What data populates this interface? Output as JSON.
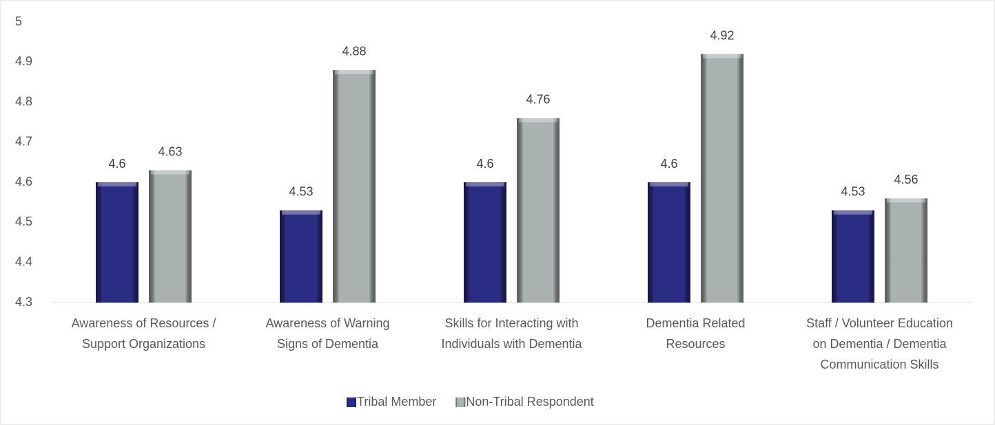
{
  "chart_data": {
    "type": "bar",
    "categories": [
      "Awareness of Resources /\nSupport Organizations",
      "Awareness of Warning\nSigns of Dementia",
      "Skills for Interacting with\nIndividuals with Dementia",
      "Dementia Related\nResources",
      "Staff / Volunteer Education\non Dementia / Dementia\nCommunication Skills"
    ],
    "series": [
      {
        "name": "Tribal Member",
        "color": "#2b2d84",
        "values": [
          4.6,
          4.53,
          4.6,
          4.6,
          4.53
        ]
      },
      {
        "name": "Non-Tribal Respondent",
        "color": "#a9b1b1",
        "values": [
          4.63,
          4.88,
          4.76,
          4.92,
          4.56
        ]
      }
    ],
    "ylim": [
      4.3,
      5
    ],
    "yticks": [
      4.3,
      4.4,
      4.5,
      4.6,
      4.7,
      4.8,
      4.9,
      5
    ],
    "grid": false,
    "legend": "bottom"
  }
}
